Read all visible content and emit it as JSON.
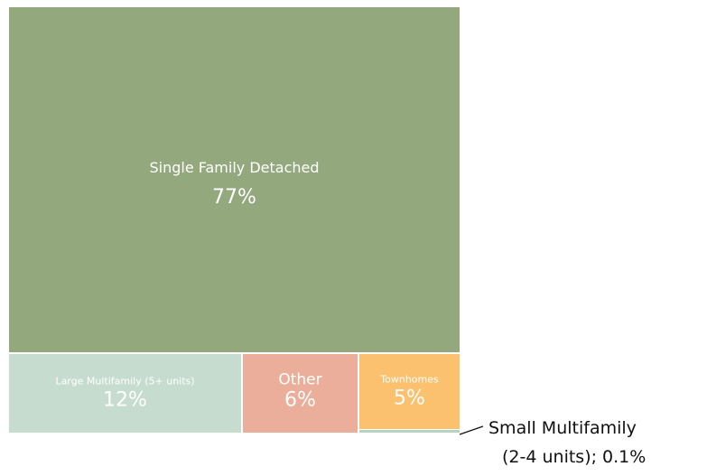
{
  "chart_data": {
    "type": "treemap",
    "nodes": [
      {
        "name": "Single Family Detached",
        "value": 77,
        "value_label": "77%",
        "color": "#94a87e"
      },
      {
        "name": "Large Multifamily (5+ units)",
        "value": 12,
        "value_label": "12%",
        "color": "#c5dccf"
      },
      {
        "name": "Other",
        "value": 6,
        "value_label": "6%",
        "color": "#ebae9a"
      },
      {
        "name": "Townhomes",
        "value": 5,
        "value_label": "5%",
        "color": "#fbc16f"
      },
      {
        "name": "Small Multifamily (2-4 units)",
        "value": 0.1,
        "value_label": "0.1%",
        "color": "#b7d3c3"
      }
    ],
    "external_label": {
      "line1": "Small Multifamily",
      "line2": "(2-4 units); 0.1%"
    }
  }
}
